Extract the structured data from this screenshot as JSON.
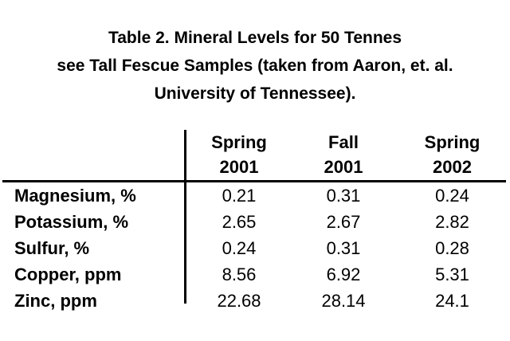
{
  "caption": {
    "lines": [
      "Table 2. Mineral Levels for 50 Tennes",
      "see Tall Fescue Samples (taken from Aaron, et. al.",
      "University of Tennessee)."
    ]
  },
  "table": {
    "headers": [
      {
        "line1": "Spring",
        "line2": "2001"
      },
      {
        "line1": "Fall",
        "line2": "2001"
      },
      {
        "line1": "Spring",
        "line2": "2002"
      }
    ],
    "rows": [
      {
        "label": "Magnesium, %",
        "values": [
          "0.21",
          "0.31",
          "0.24"
        ]
      },
      {
        "label": "Potassium, %",
        "values": [
          "2.65",
          "2.67",
          "2.82"
        ]
      },
      {
        "label": "Sulfur, %",
        "values": [
          "0.24",
          "0.31",
          "0.28"
        ]
      },
      {
        "label": "Copper, ppm",
        "values": [
          "8.56",
          "6.92",
          "5.31"
        ]
      },
      {
        "label": "Zinc, ppm",
        "values": [
          "22.68",
          "28.14",
          "24.1"
        ]
      }
    ]
  },
  "colors": {
    "text": "#000000",
    "background": "#ffffff",
    "rule": "#000000"
  }
}
